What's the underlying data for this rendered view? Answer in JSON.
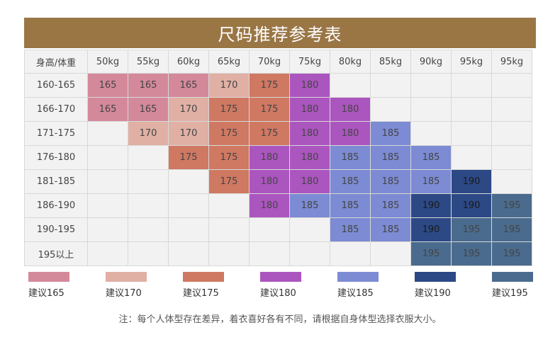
{
  "title": "尺码推荐参考表",
  "table": {
    "corner_label": "身高/体重",
    "weights": [
      "50kg",
      "55kg",
      "60kg",
      "65kg",
      "70kg",
      "75kg",
      "80kg",
      "85kg",
      "90kg",
      "95kg",
      "95kg"
    ],
    "rows": [
      {
        "height": "160-165",
        "cells": [
          "165",
          "165",
          "165",
          "170",
          "175",
          "180",
          "",
          "",
          "",
          "",
          ""
        ]
      },
      {
        "height": "166-170",
        "cells": [
          "165",
          "165",
          "170",
          "175",
          "175",
          "180",
          "180",
          "",
          "",
          "",
          ""
        ]
      },
      {
        "height": "171-175",
        "cells": [
          "",
          "170",
          "170",
          "175",
          "175",
          "180",
          "180",
          "185",
          "",
          "",
          ""
        ]
      },
      {
        "height": "176-180",
        "cells": [
          "",
          "",
          "175",
          "175",
          "180",
          "180",
          "185",
          "185",
          "185",
          "",
          ""
        ]
      },
      {
        "height": "181-185",
        "cells": [
          "",
          "",
          "",
          "175",
          "180",
          "180",
          "185",
          "185",
          "185",
          "190",
          ""
        ]
      },
      {
        "height": "186-190",
        "cells": [
          "",
          "",
          "",
          "",
          "180",
          "185",
          "185",
          "185",
          "190",
          "190",
          "195"
        ]
      },
      {
        "height": "190-195",
        "cells": [
          "",
          "",
          "",
          "",
          "",
          "",
          "185",
          "185",
          "190",
          "195",
          "195"
        ]
      },
      {
        "height": "195以上",
        "cells": [
          "",
          "",
          "",
          "",
          "",
          "",
          "",
          "",
          "195",
          "195",
          "195"
        ]
      }
    ]
  },
  "size_colors": {
    "165": "#d4899b",
    "170": "#e0b0a4",
    "175": "#cf7862",
    "180": "#ab55bf",
    "185": "#7c8bd3",
    "190": "#2c4985",
    "195": "#4a6b8d"
  },
  "empty_cell_color": "#f2f2f2",
  "legend": [
    {
      "size": "165",
      "label": "建议165"
    },
    {
      "size": "170",
      "label": "建议170"
    },
    {
      "size": "175",
      "label": "建议175"
    },
    {
      "size": "180",
      "label": "建议180"
    },
    {
      "size": "185",
      "label": "建议185"
    },
    {
      "size": "190",
      "label": "建议190"
    },
    {
      "size": "195",
      "label": "建议195"
    }
  ],
  "note": "注：每个人体型存在差异，着衣喜好各有不同，请根据自身体型选择衣服大小。"
}
